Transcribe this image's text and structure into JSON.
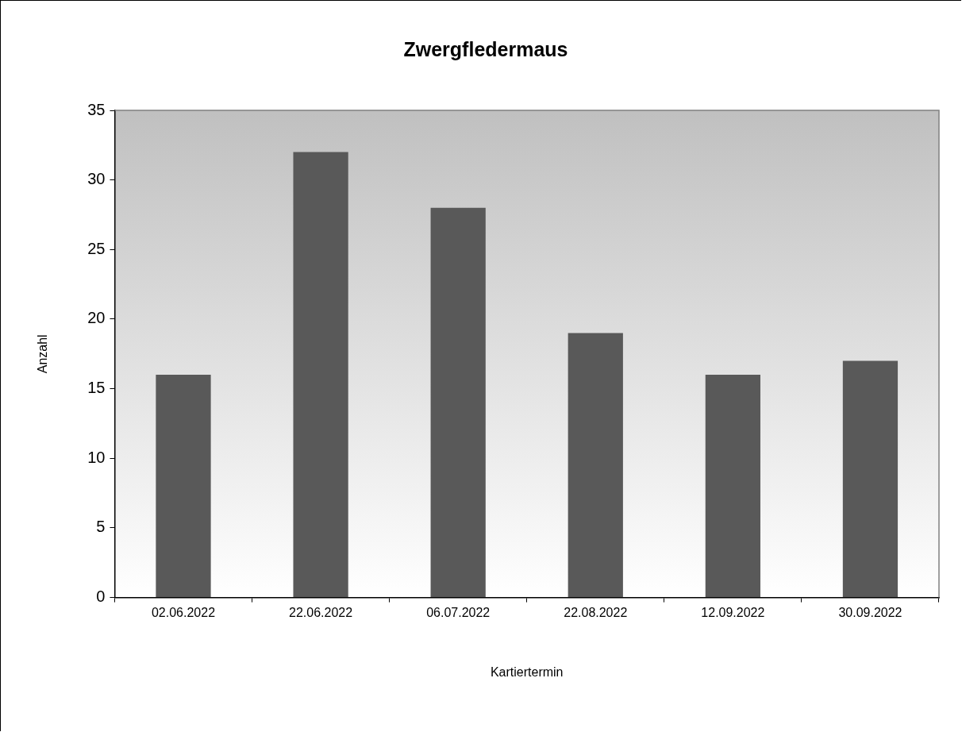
{
  "chart_data": {
    "type": "bar",
    "title": "Zwergfledermaus",
    "xlabel": "Kartiertermin",
    "ylabel": "Anzahl",
    "categories": [
      "02.06.2022",
      "22.06.2022",
      "06.07.2022",
      "22.08.2022",
      "12.09.2022",
      "30.09.2022"
    ],
    "values": [
      16,
      32,
      28,
      19,
      16,
      17
    ],
    "color": "#595959",
    "ylim": [
      0,
      35
    ],
    "yticks": [
      0,
      5,
      10,
      15,
      20,
      25,
      30,
      35
    ],
    "grid": false,
    "legend": false
  }
}
